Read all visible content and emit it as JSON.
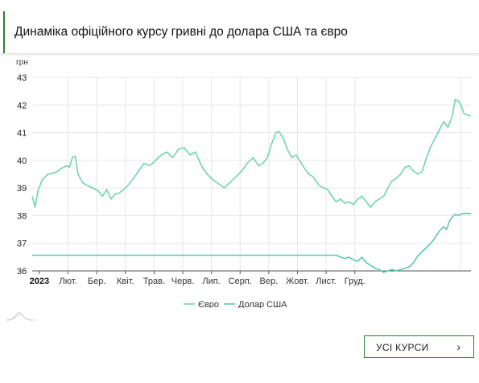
{
  "page": {
    "title": "Динаміка офіційного курсу гривні до долара США та євро"
  },
  "button": {
    "label": "УСІ КУРСИ",
    "chevron": "›"
  },
  "colors": {
    "accent": "#2e7d32",
    "eur": "#6fd6a8",
    "usd": "#5cc7b0",
    "grid": "#e6e6e6",
    "axis": "#555555"
  },
  "chart_data": {
    "type": "line",
    "unit_label": "грн",
    "ylim": [
      36,
      43
    ],
    "yticks": [
      "43",
      "42",
      "41",
      "40",
      "39",
      "38",
      "37",
      "36"
    ],
    "x_ticks": [
      "2023",
      "Лют.",
      "Бер.",
      "Квіт.",
      "Трав.",
      "Черв.",
      "Лип.",
      "Серп.",
      "Вер.",
      "Жовт.",
      "Лист.",
      "Груд."
    ],
    "grid": true,
    "legend_position": "bottom",
    "series": [
      {
        "name": "Євро",
        "color": "#6fd6a8",
        "points": [
          [
            0,
            38.7
          ],
          [
            0.1,
            38.3
          ],
          [
            0.2,
            38.9
          ],
          [
            0.35,
            39.3
          ],
          [
            0.55,
            39.5
          ],
          [
            0.8,
            39.55
          ],
          [
            1.0,
            39.7
          ],
          [
            1.2,
            39.8
          ],
          [
            1.3,
            39.75
          ],
          [
            1.4,
            40.1
          ],
          [
            1.5,
            40.15
          ],
          [
            1.6,
            39.5
          ],
          [
            1.75,
            39.2
          ],
          [
            1.9,
            39.1
          ],
          [
            2.1,
            39.0
          ],
          [
            2.3,
            38.9
          ],
          [
            2.45,
            38.7
          ],
          [
            2.6,
            38.95
          ],
          [
            2.75,
            38.6
          ],
          [
            2.9,
            38.8
          ],
          [
            3.0,
            38.8
          ],
          [
            3.15,
            38.9
          ],
          [
            3.3,
            39.05
          ],
          [
            3.5,
            39.3
          ],
          [
            3.7,
            39.6
          ],
          [
            3.9,
            39.9
          ],
          [
            4.1,
            39.8
          ],
          [
            4.3,
            40.0
          ],
          [
            4.5,
            40.2
          ],
          [
            4.7,
            40.3
          ],
          [
            4.9,
            40.1
          ],
          [
            5.1,
            40.4
          ],
          [
            5.3,
            40.45
          ],
          [
            5.5,
            40.2
          ],
          [
            5.7,
            40.3
          ],
          [
            5.9,
            39.8
          ],
          [
            6.1,
            39.5
          ],
          [
            6.3,
            39.3
          ],
          [
            6.5,
            39.15
          ],
          [
            6.7,
            39.0
          ],
          [
            6.9,
            39.2
          ],
          [
            7.1,
            39.4
          ],
          [
            7.3,
            39.6
          ],
          [
            7.5,
            39.9
          ],
          [
            7.7,
            40.1
          ],
          [
            7.9,
            39.8
          ],
          [
            8.05,
            39.9
          ],
          [
            8.2,
            40.1
          ],
          [
            8.35,
            40.6
          ],
          [
            8.5,
            41.0
          ],
          [
            8.6,
            41.05
          ],
          [
            8.75,
            40.8
          ],
          [
            8.9,
            40.4
          ],
          [
            9.05,
            40.1
          ],
          [
            9.2,
            40.2
          ],
          [
            9.35,
            39.95
          ],
          [
            9.5,
            39.7
          ],
          [
            9.65,
            39.5
          ],
          [
            9.8,
            39.4
          ],
          [
            10.0,
            39.1
          ],
          [
            10.15,
            39.0
          ],
          [
            10.3,
            38.95
          ],
          [
            10.45,
            38.7
          ],
          [
            10.6,
            38.5
          ],
          [
            10.75,
            38.6
          ],
          [
            10.9,
            38.45
          ],
          [
            11.05,
            38.5
          ],
          [
            11.2,
            38.4
          ],
          [
            11.35,
            38.6
          ],
          [
            11.5,
            38.7
          ],
          [
            11.65,
            38.5
          ],
          [
            11.8,
            38.3
          ],
          [
            11.95,
            38.5
          ],
          [
            12.1,
            38.6
          ],
          [
            12.25,
            38.7
          ],
          [
            12.4,
            39.0
          ],
          [
            12.55,
            39.25
          ],
          [
            12.7,
            39.35
          ],
          [
            12.85,
            39.5
          ],
          [
            13.0,
            39.75
          ],
          [
            13.15,
            39.8
          ],
          [
            13.3,
            39.6
          ],
          [
            13.45,
            39.5
          ],
          [
            13.6,
            39.6
          ],
          [
            13.75,
            40.1
          ],
          [
            13.9,
            40.5
          ],
          [
            14.05,
            40.8
          ],
          [
            14.2,
            41.1
          ],
          [
            14.35,
            41.4
          ],
          [
            14.5,
            41.2
          ],
          [
            14.65,
            41.6
          ],
          [
            14.75,
            42.2
          ],
          [
            14.85,
            42.15
          ],
          [
            14.95,
            42.0
          ],
          [
            15.05,
            41.7
          ],
          [
            15.15,
            41.65
          ],
          [
            15.3,
            41.6
          ]
        ]
      },
      {
        "name": "Долар США",
        "color": "#5cc7b0",
        "points": [
          [
            0,
            36.57
          ],
          [
            10.6,
            36.57
          ],
          [
            10.75,
            36.5
          ],
          [
            10.9,
            36.45
          ],
          [
            11.05,
            36.5
          ],
          [
            11.2,
            36.4
          ],
          [
            11.35,
            36.35
          ],
          [
            11.5,
            36.5
          ],
          [
            11.65,
            36.3
          ],
          [
            11.8,
            36.2
          ],
          [
            11.95,
            36.1
          ],
          [
            12.1,
            36.05
          ],
          [
            12.25,
            35.95
          ],
          [
            12.4,
            36.0
          ],
          [
            12.55,
            36.05
          ],
          [
            12.7,
            36.0
          ],
          [
            12.85,
            36.05
          ],
          [
            13.0,
            36.1
          ],
          [
            13.15,
            36.15
          ],
          [
            13.3,
            36.3
          ],
          [
            13.45,
            36.55
          ],
          [
            13.6,
            36.7
          ],
          [
            13.75,
            36.85
          ],
          [
            13.9,
            37.0
          ],
          [
            14.05,
            37.2
          ],
          [
            14.2,
            37.45
          ],
          [
            14.35,
            37.6
          ],
          [
            14.45,
            37.5
          ],
          [
            14.55,
            37.8
          ],
          [
            14.65,
            37.95
          ],
          [
            14.75,
            38.05
          ],
          [
            14.85,
            38.0
          ],
          [
            14.95,
            38.05
          ],
          [
            15.05,
            38.08
          ],
          [
            15.3,
            38.08
          ]
        ]
      }
    ]
  }
}
